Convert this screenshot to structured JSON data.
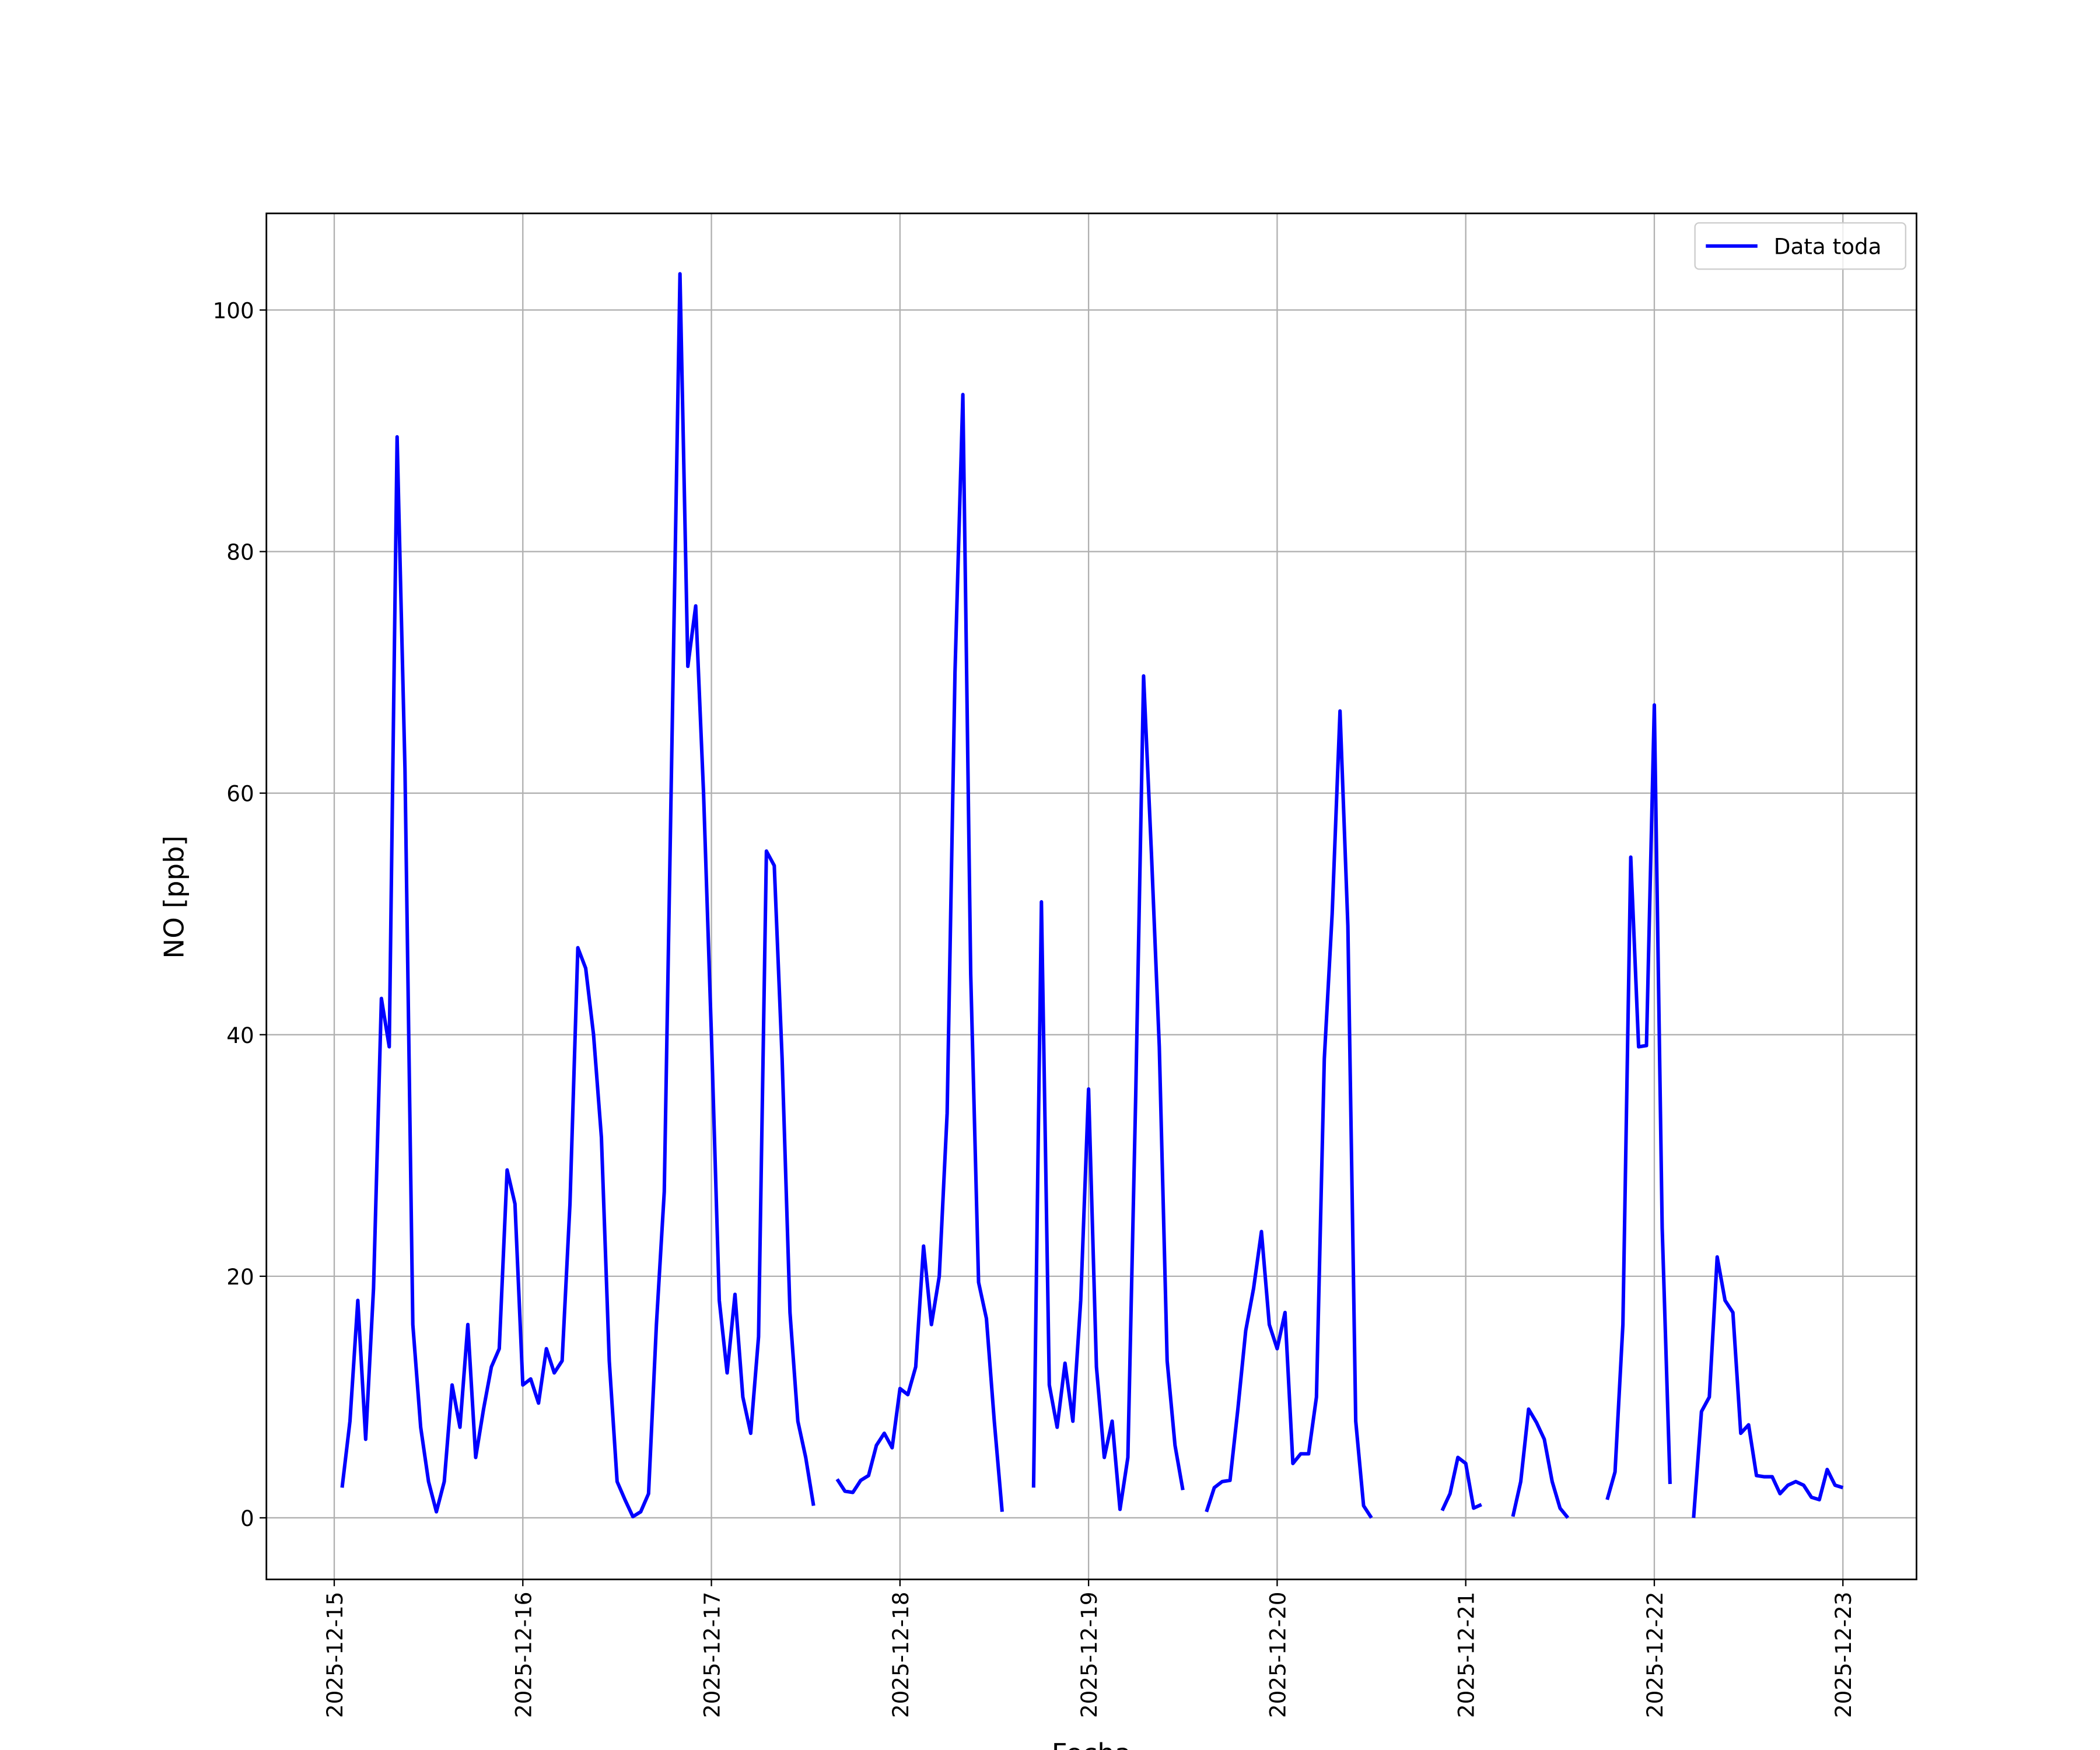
{
  "chart_data": {
    "type": "line",
    "xlabel": "Fecha",
    "ylabel": "NO [ppb]",
    "x": [
      "2025-12-15 01:00",
      "2025-12-15 02:00",
      "2025-12-15 03:00",
      "2025-12-15 04:00",
      "2025-12-15 05:00",
      "2025-12-15 06:00",
      "2025-12-15 07:00",
      "2025-12-15 08:00",
      "2025-12-15 09:00",
      "2025-12-15 10:00",
      "2025-12-15 11:00",
      "2025-12-15 12:00",
      "2025-12-15 13:00",
      "2025-12-15 14:00",
      "2025-12-15 15:00",
      "2025-12-15 16:00",
      "2025-12-15 17:00",
      "2025-12-15 18:00",
      "2025-12-15 19:00",
      "2025-12-15 20:00",
      "2025-12-15 21:00",
      "2025-12-15 22:00",
      "2025-12-15 23:00",
      "2025-12-16 00:00",
      "2025-12-16 01:00",
      "2025-12-16 02:00",
      "2025-12-16 03:00",
      "2025-12-16 04:00",
      "2025-12-16 05:00",
      "2025-12-16 06:00",
      "2025-12-16 07:00",
      "2025-12-16 08:00",
      "2025-12-16 09:00",
      "2025-12-16 10:00",
      "2025-12-16 11:00",
      "2025-12-16 12:00",
      "2025-12-16 13:00",
      "2025-12-16 14:00",
      "2025-12-16 15:00",
      "2025-12-16 16:00",
      "2025-12-16 17:00",
      "2025-12-16 18:00",
      "2025-12-16 19:00",
      "2025-12-16 20:00",
      "2025-12-16 21:00",
      "2025-12-16 22:00",
      "2025-12-16 23:00",
      "2025-12-17 00:00",
      "2025-12-17 01:00",
      "2025-12-17 02:00",
      "2025-12-17 03:00",
      "2025-12-17 04:00",
      "2025-12-17 05:00",
      "2025-12-17 06:00",
      "2025-12-17 07:00",
      "2025-12-17 08:00",
      "2025-12-17 09:00",
      "2025-12-17 10:00",
      "2025-12-17 11:00",
      "2025-12-17 12:00",
      "2025-12-17 13:00",
      "2025-12-17 14:00",
      "2025-12-17 15:00",
      "2025-12-17 16:00",
      "2025-12-17 17:00",
      "2025-12-17 18:00",
      "2025-12-17 19:00",
      "2025-12-17 20:00",
      "2025-12-17 21:00",
      "2025-12-17 22:00",
      "2025-12-17 23:00",
      "2025-12-18 00:00",
      "2025-12-18 01:00",
      "2025-12-18 02:00",
      "2025-12-18 03:00",
      "2025-12-18 04:00",
      "2025-12-18 05:00",
      "2025-12-18 06:00",
      "2025-12-18 07:00",
      "2025-12-18 08:00",
      "2025-12-18 09:00",
      "2025-12-18 10:00",
      "2025-12-18 11:00",
      "2025-12-18 12:00",
      "2025-12-18 13:00",
      "2025-12-18 14:00",
      "2025-12-18 15:00",
      "2025-12-18 16:00",
      "2025-12-18 17:00",
      "2025-12-18 18:00",
      "2025-12-18 19:00",
      "2025-12-18 20:00",
      "2025-12-18 21:00",
      "2025-12-18 22:00",
      "2025-12-18 23:00",
      "2025-12-19 00:00",
      "2025-12-19 01:00",
      "2025-12-19 02:00",
      "2025-12-19 03:00",
      "2025-12-19 04:00",
      "2025-12-19 05:00",
      "2025-12-19 06:00",
      "2025-12-19 07:00",
      "2025-12-19 08:00",
      "2025-12-19 09:00",
      "2025-12-19 10:00",
      "2025-12-19 11:00",
      "2025-12-19 12:00",
      "2025-12-19 13:00",
      "2025-12-19 14:00",
      "2025-12-19 15:00",
      "2025-12-19 16:00",
      "2025-12-19 17:00",
      "2025-12-19 18:00",
      "2025-12-19 19:00",
      "2025-12-19 20:00",
      "2025-12-19 21:00",
      "2025-12-19 22:00",
      "2025-12-19 23:00",
      "2025-12-20 00:00",
      "2025-12-20 01:00",
      "2025-12-20 02:00",
      "2025-12-20 03:00",
      "2025-12-20 04:00",
      "2025-12-20 05:00",
      "2025-12-20 06:00",
      "2025-12-20 07:00",
      "2025-12-20 08:00",
      "2025-12-20 09:00",
      "2025-12-20 10:00",
      "2025-12-20 11:00",
      "2025-12-20 12:00",
      "2025-12-20 13:00",
      "2025-12-20 14:00",
      "2025-12-20 15:00",
      "2025-12-20 16:00",
      "2025-12-20 17:00",
      "2025-12-20 18:00",
      "2025-12-20 19:00",
      "2025-12-20 20:00",
      "2025-12-20 21:00",
      "2025-12-20 22:00",
      "2025-12-20 23:00",
      "2025-12-21 00:00",
      "2025-12-21 01:00",
      "2025-12-21 02:00",
      "2025-12-21 03:00",
      "2025-12-21 04:00",
      "2025-12-21 05:00",
      "2025-12-21 06:00",
      "2025-12-21 07:00",
      "2025-12-21 08:00",
      "2025-12-21 09:00",
      "2025-12-21 10:00",
      "2025-12-21 11:00",
      "2025-12-21 12:00",
      "2025-12-21 13:00",
      "2025-12-21 14:00",
      "2025-12-21 15:00",
      "2025-12-21 16:00",
      "2025-12-21 17:00",
      "2025-12-21 18:00",
      "2025-12-21 19:00",
      "2025-12-21 20:00",
      "2025-12-21 21:00",
      "2025-12-21 22:00",
      "2025-12-21 23:00",
      "2025-12-22 00:00",
      "2025-12-22 01:00",
      "2025-12-22 02:00",
      "2025-12-22 03:00",
      "2025-12-22 04:00",
      "2025-12-22 05:00",
      "2025-12-22 06:00",
      "2025-12-22 07:00",
      "2025-12-22 08:00",
      "2025-12-22 09:00",
      "2025-12-22 10:00",
      "2025-12-22 11:00",
      "2025-12-22 12:00",
      "2025-12-22 13:00",
      "2025-12-22 14:00",
      "2025-12-22 15:00",
      "2025-12-22 16:00",
      "2025-12-22 17:00",
      "2025-12-22 18:00",
      "2025-12-22 19:00",
      "2025-12-22 20:00",
      "2025-12-22 21:00",
      "2025-12-22 22:00",
      "2025-12-22 23:00",
      "2025-12-23 00:00"
    ],
    "series": [
      {
        "name": "Data toda",
        "color": "#0000ff",
        "values": [
          2.5,
          8,
          18,
          6.5,
          19,
          43,
          39,
          89.5,
          62,
          16,
          7.5,
          3,
          0.5,
          3,
          11,
          7.5,
          16,
          5,
          9,
          12.5,
          14,
          28.8,
          26,
          11,
          11.5,
          9.5,
          14,
          12,
          13,
          26,
          47.2,
          45.5,
          40,
          31.5,
          13,
          3,
          1.5,
          0.1,
          0.5,
          2,
          16,
          27,
          65,
          103,
          70.5,
          75.5,
          60,
          40,
          18,
          12,
          18.5,
          10,
          7,
          15,
          55.2,
          54,
          38,
          17,
          8,
          5,
          1,
          null,
          null,
          3.2,
          2.2,
          2.1,
          3.1,
          3.5,
          6,
          7,
          5.8,
          10.7,
          10.2,
          12.5,
          22.5,
          16,
          20,
          33.5,
          70,
          93,
          45,
          19.5,
          16.5,
          8,
          0.5,
          null,
          null,
          null,
          2.5,
          51,
          11,
          7.5,
          12.8,
          8,
          18,
          35.5,
          12.5,
          5,
          8,
          0.7,
          5,
          35,
          69.7,
          55,
          39,
          13,
          6,
          2.3,
          null,
          null,
          0.5,
          2.5,
          3,
          3.1,
          9,
          15.5,
          19,
          23.7,
          16,
          14,
          17,
          4.5,
          5.3,
          5.3,
          10,
          38,
          50,
          66.8,
          49,
          8,
          1,
          0,
          null,
          null,
          null,
          null,
          null,
          null,
          null,
          null,
          0.6,
          2,
          5,
          4.5,
          0.8,
          1.1,
          null,
          null,
          null,
          0.1,
          3,
          9,
          7.9,
          6.5,
          3,
          0.8,
          0,
          null,
          null,
          null,
          null,
          1.5,
          3.8,
          16,
          54.7,
          39,
          39.1,
          67.3,
          24,
          2.8,
          null,
          null,
          0,
          8.8,
          10,
          21.6,
          18,
          17,
          7,
          7.7,
          3.5,
          3.4,
          3.4,
          2,
          2.7,
          3,
          2.7,
          1.7,
          1.5,
          4,
          2.7,
          2.5
        ]
      }
    ],
    "xlim": [
      "2025-12-14 15:22",
      "2025-12-23 09:22"
    ],
    "xticks": [
      "2025-12-15",
      "2025-12-16",
      "2025-12-17",
      "2025-12-18",
      "2025-12-19",
      "2025-12-20",
      "2025-12-21",
      "2025-12-22",
      "2025-12-23"
    ],
    "ylim": [
      -5.1,
      108
    ],
    "yticks": [
      0,
      20,
      40,
      60,
      80,
      100
    ],
    "grid": true,
    "legend": "upper right"
  }
}
